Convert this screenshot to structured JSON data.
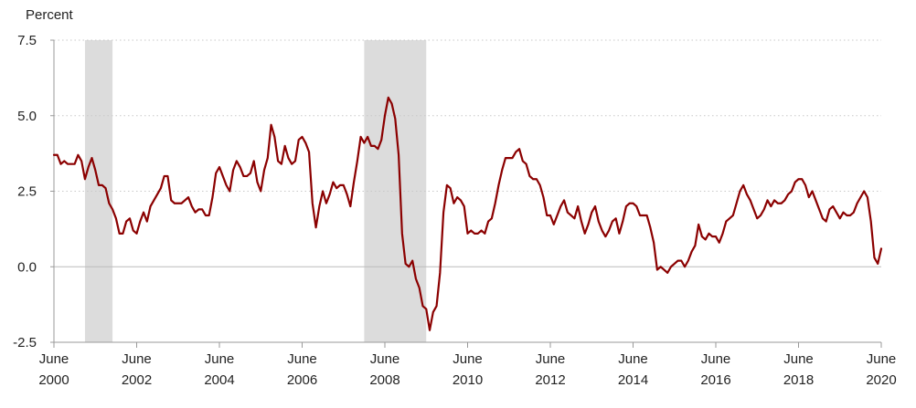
{
  "chart_data": {
    "type": "line",
    "title": "",
    "ylabel": "Percent",
    "xlabel": "",
    "ylim": [
      -2.5,
      7.5
    ],
    "yticks": [
      {
        "value": 7.5,
        "label": "7.5"
      },
      {
        "value": 5.0,
        "label": "5.0"
      },
      {
        "value": 2.5,
        "label": "2.5"
      },
      {
        "value": 0.0,
        "label": "0.0"
      },
      {
        "value": -2.5,
        "label": "-2.5"
      }
    ],
    "xlim": [
      "2000-06",
      "2020-06"
    ],
    "xticks": [
      {
        "date": "2000-06",
        "month": "June",
        "year": "2000"
      },
      {
        "date": "2002-06",
        "month": "June",
        "year": "2002"
      },
      {
        "date": "2004-06",
        "month": "June",
        "year": "2004"
      },
      {
        "date": "2006-06",
        "month": "June",
        "year": "2006"
      },
      {
        "date": "2008-06",
        "month": "June",
        "year": "2008"
      },
      {
        "date": "2010-06",
        "month": "June",
        "year": "2010"
      },
      {
        "date": "2012-06",
        "month": "June",
        "year": "2012"
      },
      {
        "date": "2014-06",
        "month": "June",
        "year": "2014"
      },
      {
        "date": "2016-06",
        "month": "June",
        "year": "2016"
      },
      {
        "date": "2018-06",
        "month": "June",
        "year": "2018"
      },
      {
        "date": "2020-06",
        "month": "June",
        "year": "2020"
      }
    ],
    "grid": true,
    "grid_style": "dotted",
    "recessions": [
      {
        "start": "2001-03",
        "end": "2001-11"
      },
      {
        "start": "2007-12",
        "end": "2009-06"
      }
    ],
    "colors": {
      "line": "#8b0000",
      "recession": "#dcdcdc",
      "grid": "#c8c8c8",
      "axis": "#999999",
      "zero": "#bbbbbb"
    },
    "series": [
      {
        "points": [
          [
            "2000-06",
            3.7
          ],
          [
            "2000-07",
            3.7
          ],
          [
            "2000-08",
            3.4
          ],
          [
            "2000-09",
            3.5
          ],
          [
            "2000-10",
            3.4
          ],
          [
            "2000-11",
            3.4
          ],
          [
            "2000-12",
            3.4
          ],
          [
            "2001-01",
            3.7
          ],
          [
            "2001-02",
            3.5
          ],
          [
            "2001-03",
            2.9
          ],
          [
            "2001-04",
            3.3
          ],
          [
            "2001-05",
            3.6
          ],
          [
            "2001-06",
            3.2
          ],
          [
            "2001-07",
            2.7
          ],
          [
            "2001-08",
            2.7
          ],
          [
            "2001-09",
            2.6
          ],
          [
            "2001-10",
            2.1
          ],
          [
            "2001-11",
            1.9
          ],
          [
            "2001-12",
            1.6
          ],
          [
            "2002-01",
            1.1
          ],
          [
            "2002-02",
            1.1
          ],
          [
            "2002-03",
            1.5
          ],
          [
            "2002-04",
            1.6
          ],
          [
            "2002-05",
            1.2
          ],
          [
            "2002-06",
            1.1
          ],
          [
            "2002-07",
            1.5
          ],
          [
            "2002-08",
            1.8
          ],
          [
            "2002-09",
            1.5
          ],
          [
            "2002-10",
            2.0
          ],
          [
            "2002-11",
            2.2
          ],
          [
            "2002-12",
            2.4
          ],
          [
            "2003-01",
            2.6
          ],
          [
            "2003-02",
            3.0
          ],
          [
            "2003-03",
            3.0
          ],
          [
            "2003-04",
            2.2
          ],
          [
            "2003-05",
            2.1
          ],
          [
            "2003-06",
            2.1
          ],
          [
            "2003-07",
            2.1
          ],
          [
            "2003-08",
            2.2
          ],
          [
            "2003-09",
            2.3
          ],
          [
            "2003-10",
            2.0
          ],
          [
            "2003-11",
            1.8
          ],
          [
            "2003-12",
            1.9
          ],
          [
            "2004-01",
            1.9
          ],
          [
            "2004-02",
            1.7
          ],
          [
            "2004-03",
            1.7
          ],
          [
            "2004-04",
            2.3
          ],
          [
            "2004-05",
            3.1
          ],
          [
            "2004-06",
            3.3
          ],
          [
            "2004-07",
            3.0
          ],
          [
            "2004-08",
            2.7
          ],
          [
            "2004-09",
            2.5
          ],
          [
            "2004-10",
            3.2
          ],
          [
            "2004-11",
            3.5
          ],
          [
            "2004-12",
            3.3
          ],
          [
            "2005-01",
            3.0
          ],
          [
            "2005-02",
            3.0
          ],
          [
            "2005-03",
            3.1
          ],
          [
            "2005-04",
            3.5
          ],
          [
            "2005-05",
            2.8
          ],
          [
            "2005-06",
            2.5
          ],
          [
            "2005-07",
            3.2
          ],
          [
            "2005-08",
            3.6
          ],
          [
            "2005-09",
            4.7
          ],
          [
            "2005-10",
            4.3
          ],
          [
            "2005-11",
            3.5
          ],
          [
            "2005-12",
            3.4
          ],
          [
            "2006-01",
            4.0
          ],
          [
            "2006-02",
            3.6
          ],
          [
            "2006-03",
            3.4
          ],
          [
            "2006-04",
            3.5
          ],
          [
            "2006-05",
            4.2
          ],
          [
            "2006-06",
            4.3
          ],
          [
            "2006-07",
            4.1
          ],
          [
            "2006-08",
            3.8
          ],
          [
            "2006-09",
            2.1
          ],
          [
            "2006-10",
            1.3
          ],
          [
            "2006-11",
            2.0
          ],
          [
            "2006-12",
            2.5
          ],
          [
            "2007-01",
            2.1
          ],
          [
            "2007-02",
            2.4
          ],
          [
            "2007-03",
            2.8
          ],
          [
            "2007-04",
            2.6
          ],
          [
            "2007-05",
            2.7
          ],
          [
            "2007-06",
            2.7
          ],
          [
            "2007-07",
            2.4
          ],
          [
            "2007-08",
            2.0
          ],
          [
            "2007-09",
            2.8
          ],
          [
            "2007-10",
            3.5
          ],
          [
            "2007-11",
            4.3
          ],
          [
            "2007-12",
            4.1
          ],
          [
            "2008-01",
            4.3
          ],
          [
            "2008-02",
            4.0
          ],
          [
            "2008-03",
            4.0
          ],
          [
            "2008-04",
            3.9
          ],
          [
            "2008-05",
            4.2
          ],
          [
            "2008-06",
            5.0
          ],
          [
            "2008-07",
            5.6
          ],
          [
            "2008-08",
            5.4
          ],
          [
            "2008-09",
            4.9
          ],
          [
            "2008-10",
            3.7
          ],
          [
            "2008-11",
            1.1
          ],
          [
            "2008-12",
            0.1
          ],
          [
            "2009-01",
            0.0
          ],
          [
            "2009-02",
            0.2
          ],
          [
            "2009-03",
            -0.4
          ],
          [
            "2009-04",
            -0.7
          ],
          [
            "2009-05",
            -1.3
          ],
          [
            "2009-06",
            -1.4
          ],
          [
            "2009-07",
            -2.1
          ],
          [
            "2009-08",
            -1.5
          ],
          [
            "2009-09",
            -1.3
          ],
          [
            "2009-10",
            -0.2
          ],
          [
            "2009-11",
            1.8
          ],
          [
            "2009-12",
            2.7
          ],
          [
            "2010-01",
            2.6
          ],
          [
            "2010-02",
            2.1
          ],
          [
            "2010-03",
            2.3
          ],
          [
            "2010-04",
            2.2
          ],
          [
            "2010-05",
            2.0
          ],
          [
            "2010-06",
            1.1
          ],
          [
            "2010-07",
            1.2
          ],
          [
            "2010-08",
            1.1
          ],
          [
            "2010-09",
            1.1
          ],
          [
            "2010-10",
            1.2
          ],
          [
            "2010-11",
            1.1
          ],
          [
            "2010-12",
            1.5
          ],
          [
            "2011-01",
            1.6
          ],
          [
            "2011-02",
            2.1
          ],
          [
            "2011-03",
            2.7
          ],
          [
            "2011-04",
            3.2
          ],
          [
            "2011-05",
            3.6
          ],
          [
            "2011-06",
            3.6
          ],
          [
            "2011-07",
            3.6
          ],
          [
            "2011-08",
            3.8
          ],
          [
            "2011-09",
            3.9
          ],
          [
            "2011-10",
            3.5
          ],
          [
            "2011-11",
            3.4
          ],
          [
            "2011-12",
            3.0
          ],
          [
            "2012-01",
            2.9
          ],
          [
            "2012-02",
            2.9
          ],
          [
            "2012-03",
            2.7
          ],
          [
            "2012-04",
            2.3
          ],
          [
            "2012-05",
            1.7
          ],
          [
            "2012-06",
            1.7
          ],
          [
            "2012-07",
            1.4
          ],
          [
            "2012-08",
            1.7
          ],
          [
            "2012-09",
            2.0
          ],
          [
            "2012-10",
            2.2
          ],
          [
            "2012-11",
            1.8
          ],
          [
            "2012-12",
            1.7
          ],
          [
            "2013-01",
            1.6
          ],
          [
            "2013-02",
            2.0
          ],
          [
            "2013-03",
            1.5
          ],
          [
            "2013-04",
            1.1
          ],
          [
            "2013-05",
            1.4
          ],
          [
            "2013-06",
            1.8
          ],
          [
            "2013-07",
            2.0
          ],
          [
            "2013-08",
            1.5
          ],
          [
            "2013-09",
            1.2
          ],
          [
            "2013-10",
            1.0
          ],
          [
            "2013-11",
            1.2
          ],
          [
            "2013-12",
            1.5
          ],
          [
            "2014-01",
            1.6
          ],
          [
            "2014-02",
            1.1
          ],
          [
            "2014-03",
            1.5
          ],
          [
            "2014-04",
            2.0
          ],
          [
            "2014-05",
            2.1
          ],
          [
            "2014-06",
            2.1
          ],
          [
            "2014-07",
            2.0
          ],
          [
            "2014-08",
            1.7
          ],
          [
            "2014-09",
            1.7
          ],
          [
            "2014-10",
            1.7
          ],
          [
            "2014-11",
            1.3
          ],
          [
            "2014-12",
            0.8
          ],
          [
            "2015-01",
            -0.1
          ],
          [
            "2015-02",
            0.0
          ],
          [
            "2015-03",
            -0.1
          ],
          [
            "2015-04",
            -0.2
          ],
          [
            "2015-05",
            0.0
          ],
          [
            "2015-06",
            0.1
          ],
          [
            "2015-07",
            0.2
          ],
          [
            "2015-08",
            0.2
          ],
          [
            "2015-09",
            0.0
          ],
          [
            "2015-10",
            0.2
          ],
          [
            "2015-11",
            0.5
          ],
          [
            "2015-12",
            0.7
          ],
          [
            "2016-01",
            1.4
          ],
          [
            "2016-02",
            1.0
          ],
          [
            "2016-03",
            0.9
          ],
          [
            "2016-04",
            1.1
          ],
          [
            "2016-05",
            1.0
          ],
          [
            "2016-06",
            1.0
          ],
          [
            "2016-07",
            0.8
          ],
          [
            "2016-08",
            1.1
          ],
          [
            "2016-09",
            1.5
          ],
          [
            "2016-10",
            1.6
          ],
          [
            "2016-11",
            1.7
          ],
          [
            "2016-12",
            2.1
          ],
          [
            "2017-01",
            2.5
          ],
          [
            "2017-02",
            2.7
          ],
          [
            "2017-03",
            2.4
          ],
          [
            "2017-04",
            2.2
          ],
          [
            "2017-05",
            1.9
          ],
          [
            "2017-06",
            1.6
          ],
          [
            "2017-07",
            1.7
          ],
          [
            "2017-08",
            1.9
          ],
          [
            "2017-09",
            2.2
          ],
          [
            "2017-10",
            2.0
          ],
          [
            "2017-11",
            2.2
          ],
          [
            "2017-12",
            2.1
          ],
          [
            "2018-01",
            2.1
          ],
          [
            "2018-02",
            2.2
          ],
          [
            "2018-03",
            2.4
          ],
          [
            "2018-04",
            2.5
          ],
          [
            "2018-05",
            2.8
          ],
          [
            "2018-06",
            2.9
          ],
          [
            "2018-07",
            2.9
          ],
          [
            "2018-08",
            2.7
          ],
          [
            "2018-09",
            2.3
          ],
          [
            "2018-10",
            2.5
          ],
          [
            "2018-11",
            2.2
          ],
          [
            "2018-12",
            1.9
          ],
          [
            "2019-01",
            1.6
          ],
          [
            "2019-02",
            1.5
          ],
          [
            "2019-03",
            1.9
          ],
          [
            "2019-04",
            2.0
          ],
          [
            "2019-05",
            1.8
          ],
          [
            "2019-06",
            1.6
          ],
          [
            "2019-07",
            1.8
          ],
          [
            "2019-08",
            1.7
          ],
          [
            "2019-09",
            1.7
          ],
          [
            "2019-10",
            1.8
          ],
          [
            "2019-11",
            2.1
          ],
          [
            "2019-12",
            2.3
          ],
          [
            "2020-01",
            2.5
          ],
          [
            "2020-02",
            2.3
          ],
          [
            "2020-03",
            1.5
          ],
          [
            "2020-04",
            0.3
          ],
          [
            "2020-05",
            0.1
          ],
          [
            "2020-06",
            0.6
          ]
        ]
      }
    ]
  }
}
